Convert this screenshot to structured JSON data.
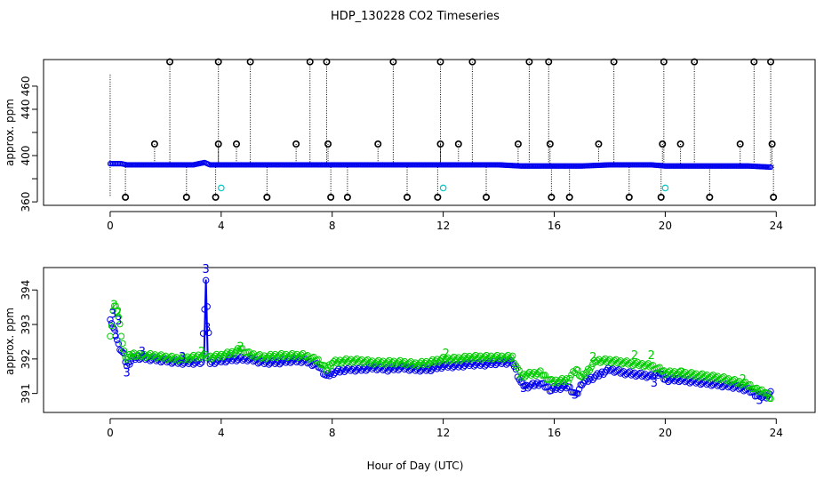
{
  "figure": {
    "title": "HDP_130228  CO2 Timeseries",
    "xlabel": "Hour of Day (UTC)"
  },
  "colors": {
    "outlier": "#000000",
    "series_blue": "#0000ee",
    "series_green": "#00cc00",
    "flag_cyan": "#00c8c8"
  },
  "chart_data": [
    {
      "type": "scatter",
      "panel": "top",
      "ylabel": "approx. ppm",
      "xlim": [
        -2.4,
        25.4
      ],
      "ylim": [
        357,
        483
      ],
      "x_ticks": [
        0,
        4,
        8,
        12,
        16,
        20,
        24
      ],
      "y_ticks": [
        360,
        380,
        400,
        420,
        440,
        460
      ],
      "y_tick_labels": [
        "360",
        "",
        "400",
        "440",
        "460"
      ],
      "y_tick_label_values": [
        360,
        380,
        400,
        440,
        460
      ],
      "baseline": {
        "name": "",
        "marker": "circle",
        "color": "blue",
        "points": [
          [
            0.0,
            393
          ],
          [
            0.2,
            393
          ],
          [
            0.4,
            393
          ],
          [
            0.6,
            392
          ],
          [
            1.0,
            392
          ],
          [
            1.5,
            392
          ],
          [
            2.0,
            392
          ],
          [
            2.5,
            392
          ],
          [
            3.0,
            392
          ],
          [
            3.4,
            394
          ],
          [
            3.6,
            392
          ],
          [
            4.0,
            392
          ],
          [
            5.0,
            392
          ],
          [
            6.0,
            392
          ],
          [
            7.0,
            392
          ],
          [
            7.6,
            392
          ],
          [
            8.0,
            392
          ],
          [
            9.0,
            392
          ],
          [
            10.0,
            392
          ],
          [
            11.0,
            392
          ],
          [
            12.0,
            392
          ],
          [
            13.0,
            392
          ],
          [
            14.0,
            392
          ],
          [
            14.8,
            391
          ],
          [
            15.5,
            391
          ],
          [
            16.0,
            391
          ],
          [
            16.5,
            391
          ],
          [
            17.0,
            391
          ],
          [
            18.0,
            392
          ],
          [
            19.0,
            392
          ],
          [
            19.5,
            392
          ],
          [
            20.0,
            391
          ],
          [
            21.0,
            391
          ],
          [
            22.0,
            391
          ],
          [
            23.0,
            391
          ],
          [
            23.8,
            390
          ]
        ]
      },
      "high_outliers": {
        "value": 481,
        "x": [
          2.15,
          3.9,
          5.05,
          7.2,
          7.8,
          10.2,
          11.9,
          13.05,
          15.1,
          15.8,
          18.15,
          19.95,
          21.05,
          23.2,
          23.8
        ]
      },
      "mid_outliers": {
        "value": 410,
        "x": [
          1.6,
          3.9,
          4.55,
          6.7,
          7.85,
          9.65,
          11.9,
          12.55,
          14.7,
          15.85,
          17.6,
          19.9,
          20.55,
          22.7,
          23.85
        ]
      },
      "low_outliers": {
        "value": 364,
        "x": [
          0.55,
          2.75,
          3.8,
          5.65,
          7.95,
          8.55,
          10.7,
          11.8,
          13.55,
          15.9,
          16.55,
          18.7,
          19.85,
          21.6,
          23.9
        ]
      },
      "cyan_points": {
        "value": 372,
        "x": [
          4.0,
          12.0,
          20.0
        ]
      },
      "tall_stems": [
        {
          "x": 0.0,
          "top": 470,
          "bottom": 364
        }
      ]
    },
    {
      "type": "scatter",
      "panel": "bottom",
      "ylabel": "approx. ppm",
      "xlim": [
        -2.4,
        25.4
      ],
      "ylim": [
        390.45,
        394.65
      ],
      "x_ticks": [
        0,
        4,
        8,
        12,
        16,
        20,
        24
      ],
      "y_ticks": [
        391,
        392,
        393,
        394
      ],
      "series": [
        {
          "name": "",
          "marker": "circle",
          "color": "blue",
          "points": [
            [
              0.0,
              393.2
            ],
            [
              0.1,
              392.9
            ],
            [
              0.2,
              392.7
            ],
            [
              0.3,
              392.4
            ],
            [
              0.5,
              392.1
            ],
            [
              0.6,
              391.8
            ],
            [
              0.8,
              392.0
            ],
            [
              1.0,
              392.05
            ],
            [
              1.5,
              392.0
            ],
            [
              2.0,
              391.95
            ],
            [
              2.5,
              391.9
            ],
            [
              3.0,
              391.9
            ],
            [
              3.3,
              391.9
            ],
            [
              3.45,
              394.3
            ],
            [
              3.6,
              391.9
            ],
            [
              4.0,
              391.95
            ],
            [
              4.5,
              392.0
            ],
            [
              5.0,
              392.0
            ],
            [
              5.5,
              391.9
            ],
            [
              6.0,
              391.9
            ],
            [
              6.5,
              391.95
            ],
            [
              7.0,
              391.95
            ],
            [
              7.5,
              391.8
            ],
            [
              7.8,
              391.5
            ],
            [
              8.0,
              391.6
            ],
            [
              8.5,
              391.7
            ],
            [
              9.0,
              391.7
            ],
            [
              9.5,
              391.75
            ],
            [
              10.0,
              391.7
            ],
            [
              10.5,
              391.75
            ],
            [
              11.0,
              391.7
            ],
            [
              11.5,
              391.7
            ],
            [
              12.0,
              391.8
            ],
            [
              12.5,
              391.8
            ],
            [
              13.0,
              391.85
            ],
            [
              13.5,
              391.85
            ],
            [
              14.0,
              391.9
            ],
            [
              14.5,
              391.9
            ],
            [
              14.8,
              391.3
            ],
            [
              15.0,
              391.2
            ],
            [
              15.5,
              391.3
            ],
            [
              15.9,
              391.1
            ],
            [
              16.0,
              391.15
            ],
            [
              16.5,
              391.2
            ],
            [
              16.8,
              390.95
            ],
            [
              17.0,
              391.3
            ],
            [
              17.5,
              391.5
            ],
            [
              18.0,
              391.7
            ],
            [
              18.5,
              391.6
            ],
            [
              19.0,
              391.55
            ],
            [
              19.5,
              391.5
            ],
            [
              19.8,
              391.6
            ],
            [
              20.0,
              391.4
            ],
            [
              20.5,
              391.4
            ],
            [
              21.0,
              391.35
            ],
            [
              21.5,
              391.3
            ],
            [
              22.0,
              391.25
            ],
            [
              22.5,
              391.2
            ],
            [
              23.0,
              391.1
            ],
            [
              23.3,
              390.95
            ],
            [
              23.6,
              390.9
            ],
            [
              23.8,
              391.0
            ]
          ]
        },
        {
          "name": "",
          "marker": "circle",
          "color": "green",
          "points": [
            [
              0.0,
              392.6
            ],
            [
              0.1,
              393.4
            ],
            [
              0.2,
              393.6
            ],
            [
              0.3,
              393.2
            ],
            [
              0.5,
              392.2
            ],
            [
              0.6,
              392.0
            ],
            [
              0.8,
              392.15
            ],
            [
              1.0,
              392.1
            ],
            [
              1.5,
              392.1
            ],
            [
              2.0,
              392.05
            ],
            [
              2.5,
              392.0
            ],
            [
              3.0,
              392.05
            ],
            [
              3.3,
              392.1
            ],
            [
              3.6,
              392.05
            ],
            [
              4.0,
              392.1
            ],
            [
              4.5,
              392.2
            ],
            [
              4.7,
              392.3
            ],
            [
              5.0,
              392.15
            ],
            [
              5.5,
              392.05
            ],
            [
              6.0,
              392.1
            ],
            [
              6.5,
              392.1
            ],
            [
              7.0,
              392.1
            ],
            [
              7.5,
              391.95
            ],
            [
              7.8,
              391.7
            ],
            [
              8.0,
              391.9
            ],
            [
              8.5,
              391.95
            ],
            [
              9.0,
              391.95
            ],
            [
              9.5,
              391.9
            ],
            [
              10.0,
              391.9
            ],
            [
              10.5,
              391.9
            ],
            [
              11.0,
              391.85
            ],
            [
              11.5,
              391.9
            ],
            [
              12.0,
              392.0
            ],
            [
              12.5,
              392.0
            ],
            [
              13.0,
              392.05
            ],
            [
              13.5,
              392.05
            ],
            [
              14.0,
              392.05
            ],
            [
              14.5,
              392.05
            ],
            [
              14.8,
              391.5
            ],
            [
              15.0,
              391.55
            ],
            [
              15.5,
              391.6
            ],
            [
              15.9,
              391.35
            ],
            [
              16.0,
              391.35
            ],
            [
              16.5,
              391.4
            ],
            [
              16.8,
              391.7
            ],
            [
              17.0,
              391.45
            ],
            [
              17.5,
              391.95
            ],
            [
              18.0,
              391.95
            ],
            [
              18.5,
              391.9
            ],
            [
              19.0,
              391.85
            ],
            [
              19.5,
              391.8
            ],
            [
              19.8,
              391.7
            ],
            [
              20.0,
              391.6
            ],
            [
              20.5,
              391.6
            ],
            [
              21.0,
              391.55
            ],
            [
              21.5,
              391.5
            ],
            [
              22.0,
              391.45
            ],
            [
              22.5,
              391.35
            ],
            [
              23.0,
              391.25
            ],
            [
              23.3,
              391.1
            ],
            [
              23.6,
              391.05
            ],
            [
              23.8,
              390.85
            ]
          ]
        }
      ],
      "digit_labels": [
        {
          "text": "3",
          "x": 0.1,
          "y": 393.3,
          "color": "blue"
        },
        {
          "text": "3",
          "x": 0.3,
          "y": 393.1,
          "color": "blue"
        },
        {
          "text": "3",
          "x": 0.2,
          "y": 392.7,
          "color": "blue"
        },
        {
          "text": "3",
          "x": 0.6,
          "y": 391.6,
          "color": "blue"
        },
        {
          "text": "3",
          "x": 1.15,
          "y": 392.2,
          "color": "blue"
        },
        {
          "text": "3",
          "x": 3.45,
          "y": 394.6,
          "color": "blue"
        },
        {
          "text": "3",
          "x": 3.5,
          "y": 392.9,
          "color": "blue"
        },
        {
          "text": "3",
          "x": 2.6,
          "y": 392.05,
          "color": "blue"
        },
        {
          "text": "3",
          "x": 14.9,
          "y": 391.15,
          "color": "blue"
        },
        {
          "text": "3",
          "x": 16.75,
          "y": 390.95,
          "color": "blue"
        },
        {
          "text": "3",
          "x": 19.6,
          "y": 391.3,
          "color": "blue"
        },
        {
          "text": "3",
          "x": 23.4,
          "y": 390.8,
          "color": "blue"
        },
        {
          "text": "2",
          "x": 0.15,
          "y": 393.55,
          "color": "green"
        },
        {
          "text": "2",
          "x": 0.3,
          "y": 393.35,
          "color": "green"
        },
        {
          "text": "2",
          "x": 4.7,
          "y": 392.35,
          "color": "green"
        },
        {
          "text": "2",
          "x": 3.3,
          "y": 392.2,
          "color": "green"
        },
        {
          "text": "2",
          "x": 12.1,
          "y": 392.15,
          "color": "green"
        },
        {
          "text": "2",
          "x": 17.4,
          "y": 392.05,
          "color": "green"
        },
        {
          "text": "2",
          "x": 18.9,
          "y": 392.1,
          "color": "green"
        },
        {
          "text": "2",
          "x": 19.5,
          "y": 392.1,
          "color": "green"
        },
        {
          "text": "2",
          "x": 20.6,
          "y": 391.6,
          "color": "green"
        },
        {
          "text": "2",
          "x": 22.8,
          "y": 391.4,
          "color": "green"
        }
      ]
    }
  ]
}
